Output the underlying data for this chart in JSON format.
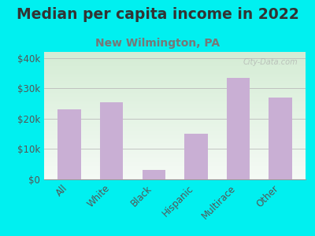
{
  "title": "Median per capita income in 2022",
  "subtitle": "New Wilmington, PA",
  "categories": [
    "All",
    "White",
    "Black",
    "Hispanic",
    "Multirace",
    "Other"
  ],
  "values": [
    23000,
    25500,
    3000,
    15000,
    33500,
    27000
  ],
  "bar_color": "#c9afd4",
  "background_outer": "#00f0f0",
  "background_top": "#d4ecd4",
  "background_bottom": "#f5faf5",
  "title_color": "#333333",
  "subtitle_color": "#777777",
  "tick_color": "#555555",
  "yticks": [
    0,
    10000,
    20000,
    30000,
    40000
  ],
  "ytick_labels": [
    "$0",
    "$10k",
    "$20k",
    "$30k",
    "$40k"
  ],
  "ylim": [
    0,
    42000
  ],
  "title_fontsize": 13.5,
  "subtitle_fontsize": 10,
  "tick_fontsize": 8.5,
  "watermark": "City-Data.com"
}
